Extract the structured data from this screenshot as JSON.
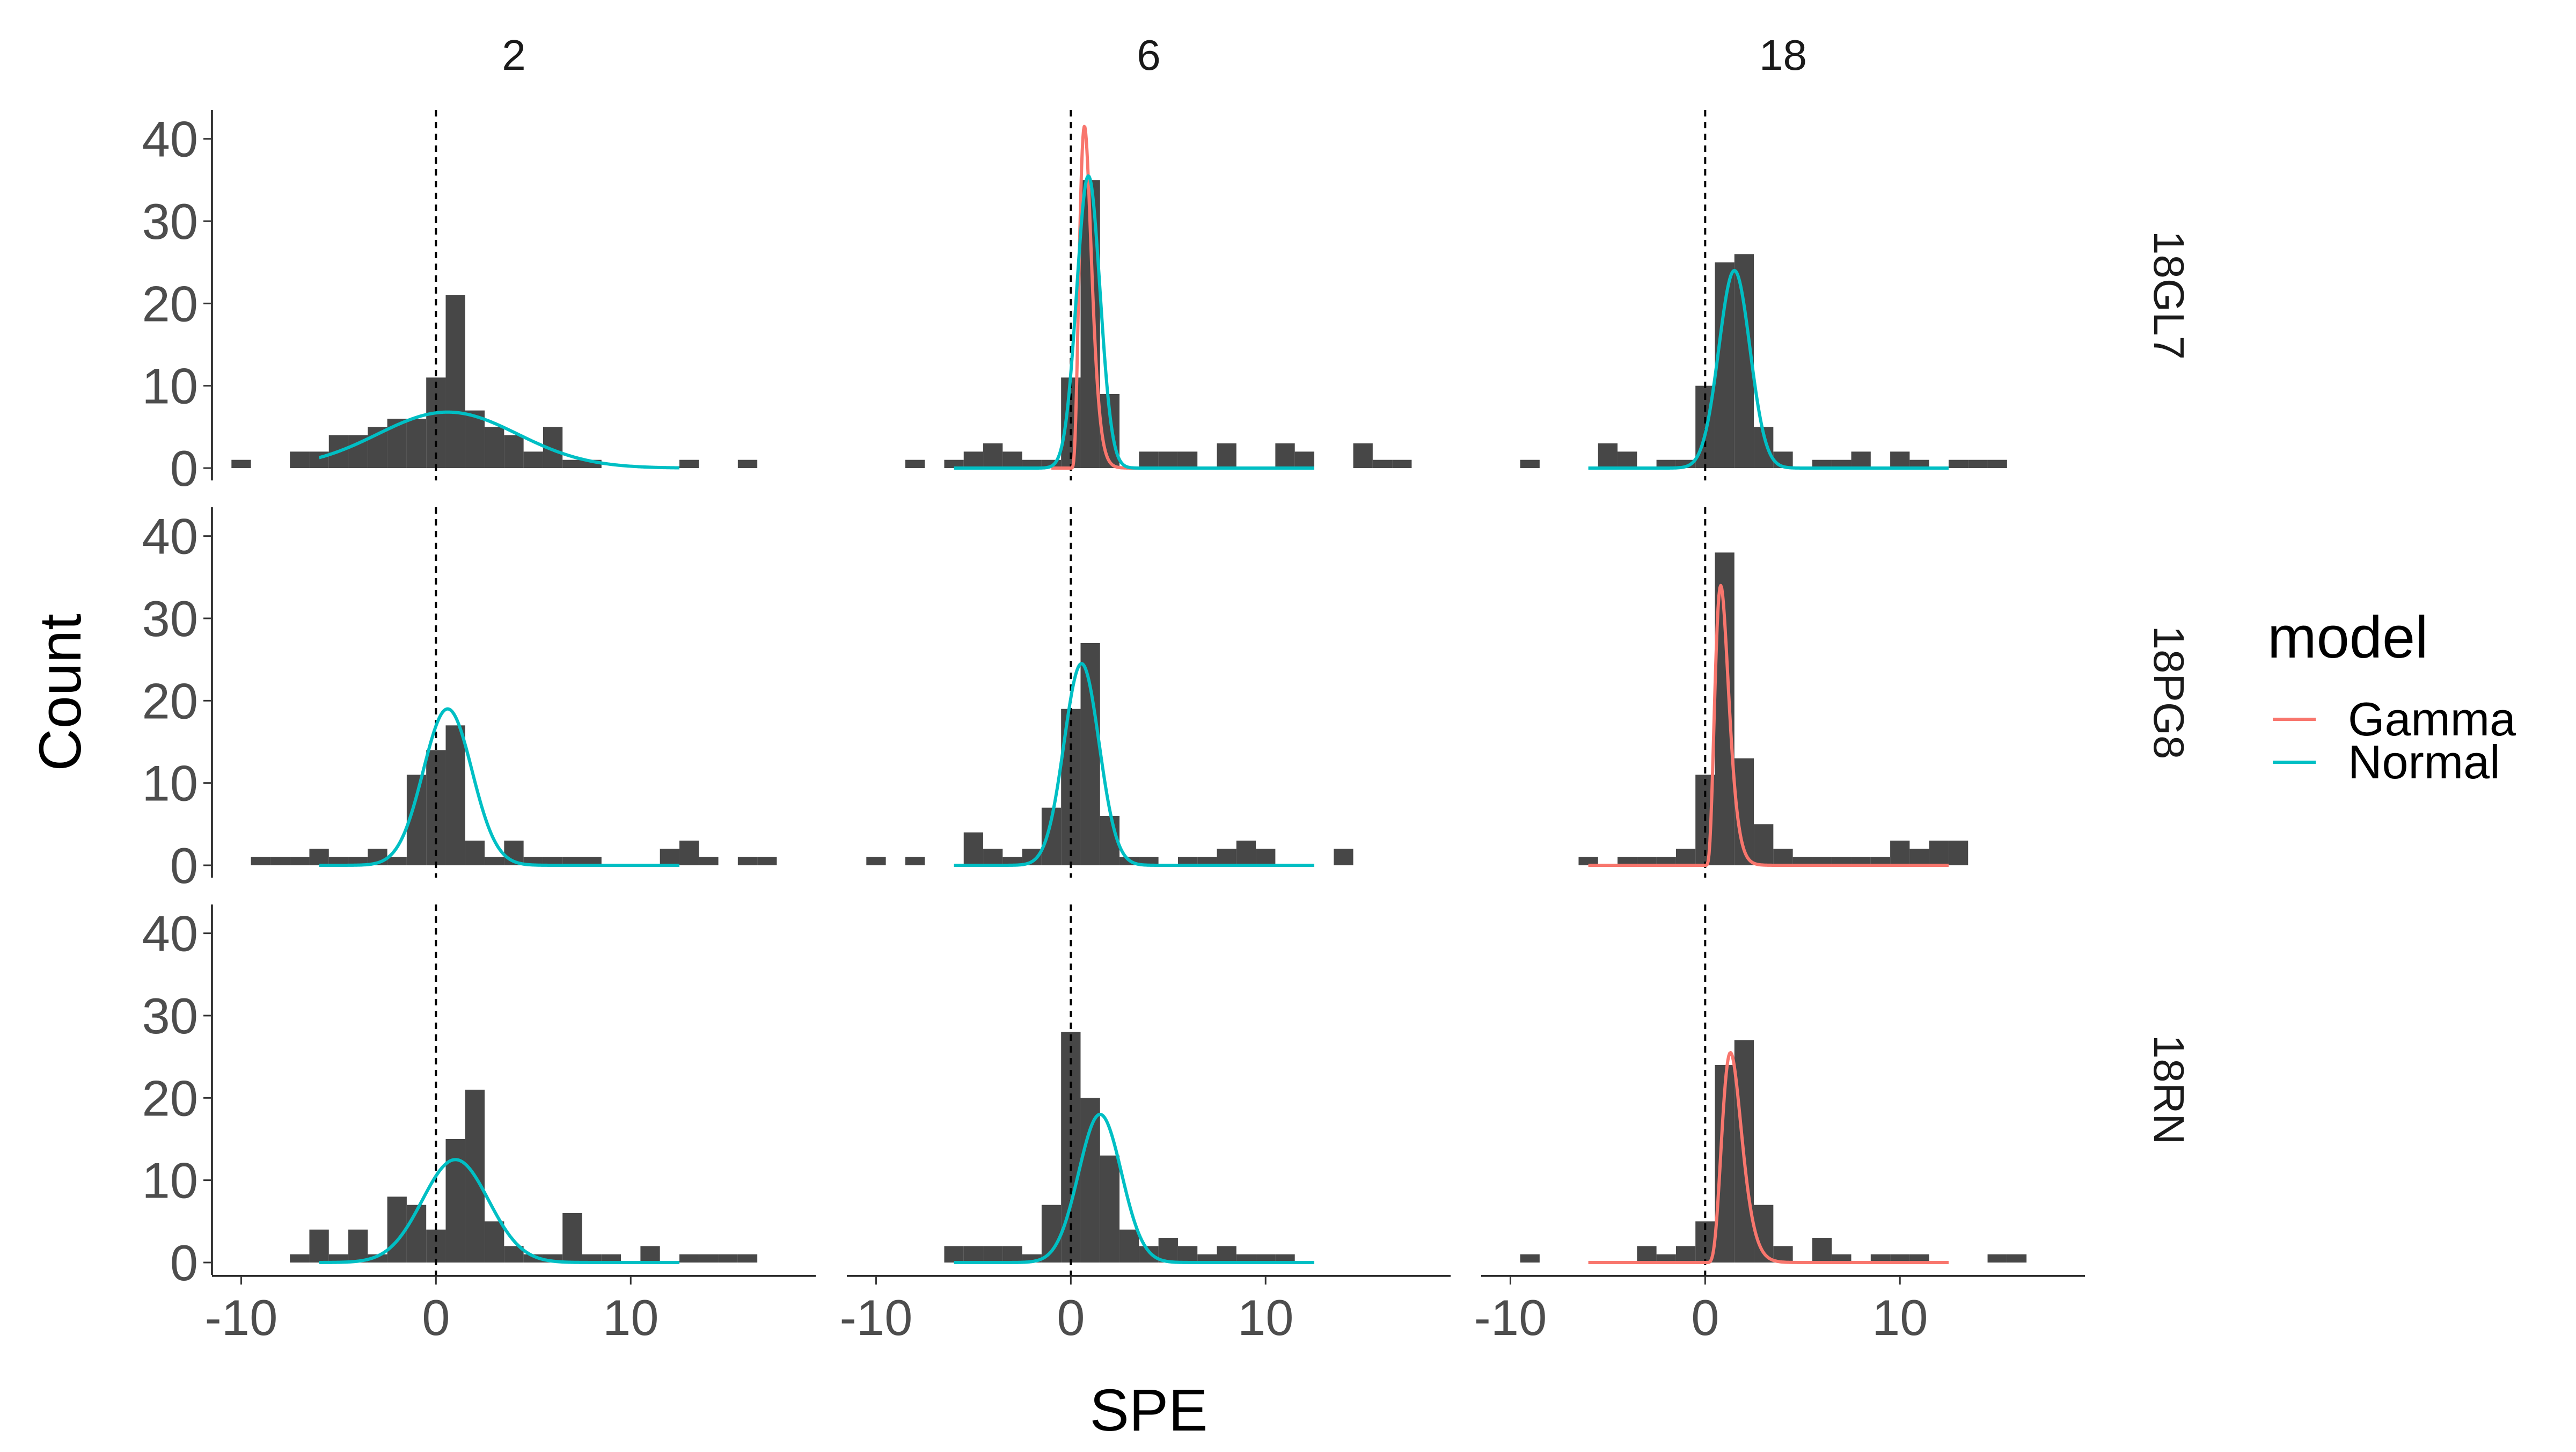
{
  "chart_data": {
    "type": "histogram-facet-grid",
    "xlabel": "SPE",
    "ylabel": "Count",
    "xlim": [
      -11.5,
      19.5
    ],
    "ylim": [
      -1.5,
      43.5
    ],
    "xticks": [
      -10,
      0,
      10
    ],
    "yticks": [
      0,
      10,
      20,
      30,
      40
    ],
    "reference_line_x": 0,
    "bin_width": 1,
    "columns": [
      "2",
      "6",
      "18"
    ],
    "rows": [
      "18GL7",
      "18PG8",
      "18RN"
    ],
    "legend": {
      "title": "model",
      "position": "right",
      "entries": [
        {
          "label": "Gamma",
          "color": "#F8766D"
        },
        {
          "label": "Normal",
          "color": "#00BFC4"
        }
      ]
    },
    "colors": {
      "bar": "#474747",
      "axis": "#000000",
      "text": "#4D4D4D"
    },
    "panels": [
      {
        "row": "18GL7",
        "col": "2",
        "model": "Normal",
        "bins": [
          [
            -10,
            1
          ],
          [
            -7,
            2
          ],
          [
            -6,
            2
          ],
          [
            -5,
            4
          ],
          [
            -4,
            4
          ],
          [
            -3,
            5
          ],
          [
            -2,
            6
          ],
          [
            -1,
            6
          ],
          [
            0,
            11
          ],
          [
            1,
            21
          ],
          [
            2,
            7
          ],
          [
            3,
            5
          ],
          [
            4,
            4
          ],
          [
            5,
            2
          ],
          [
            6,
            5
          ],
          [
            7,
            1
          ],
          [
            8,
            1
          ],
          [
            13,
            1
          ],
          [
            16,
            1
          ]
        ],
        "fit": {
          "mean": 0.6,
          "sd": 3.6,
          "peak": 6.8,
          "range": [
            -6,
            12.5
          ]
        }
      },
      {
        "row": "18GL7",
        "col": "6",
        "model": "Gamma+Normal",
        "bins": [
          [
            -8,
            1
          ],
          [
            -6,
            1
          ],
          [
            -5,
            2
          ],
          [
            -4,
            3
          ],
          [
            -3,
            2
          ],
          [
            -2,
            1
          ],
          [
            -1,
            1
          ],
          [
            0,
            11
          ],
          [
            1,
            35
          ],
          [
            2,
            9
          ],
          [
            4,
            2
          ],
          [
            5,
            2
          ],
          [
            6,
            2
          ],
          [
            8,
            3
          ],
          [
            11,
            3
          ],
          [
            12,
            2
          ],
          [
            15,
            3
          ],
          [
            16,
            1
          ],
          [
            17,
            1
          ]
        ],
        "fit": {
          "mean": 0.9,
          "sd": 0.6,
          "peak": 35.5,
          "range": [
            -6,
            12.5
          ]
        },
        "fit_gamma": {
          "shape": 6,
          "scale": 0.14,
          "peak": 41.5,
          "range": [
            -1,
            12.5
          ]
        }
      },
      {
        "row": "18GL7",
        "col": "18",
        "model": "Normal",
        "bins": [
          [
            -9,
            1
          ],
          [
            -5,
            3
          ],
          [
            -4,
            2
          ],
          [
            -2,
            1
          ],
          [
            -1,
            1
          ],
          [
            0,
            10
          ],
          [
            1,
            25
          ],
          [
            2,
            26
          ],
          [
            3,
            5
          ],
          [
            4,
            2
          ],
          [
            6,
            1
          ],
          [
            7,
            1
          ],
          [
            8,
            2
          ],
          [
            10,
            2
          ],
          [
            11,
            1
          ],
          [
            13,
            1
          ],
          [
            14,
            1
          ],
          [
            15,
            1
          ]
        ],
        "fit": {
          "mean": 1.5,
          "sd": 0.8,
          "peak": 24.0,
          "range": [
            -6,
            12.5
          ]
        }
      },
      {
        "row": "18PG8",
        "col": "2",
        "model": "Normal",
        "bins": [
          [
            -9,
            1
          ],
          [
            -8,
            1
          ],
          [
            -7,
            1
          ],
          [
            -6,
            2
          ],
          [
            -5,
            1
          ],
          [
            -4,
            1
          ],
          [
            -3,
            2
          ],
          [
            -2,
            1
          ],
          [
            -1,
            11
          ],
          [
            0,
            14
          ],
          [
            1,
            17
          ],
          [
            2,
            3
          ],
          [
            3,
            1
          ],
          [
            4,
            3
          ],
          [
            5,
            1
          ],
          [
            6,
            1
          ],
          [
            7,
            1
          ],
          [
            8,
            1
          ],
          [
            12,
            2
          ],
          [
            13,
            3
          ],
          [
            14,
            1
          ],
          [
            16,
            1
          ],
          [
            17,
            1
          ]
        ],
        "fit": {
          "mean": 0.6,
          "sd": 1.25,
          "peak": 19.0,
          "range": [
            -6,
            12.5
          ]
        }
      },
      {
        "row": "18PG8",
        "col": "6",
        "model": "Normal",
        "bins": [
          [
            -10,
            1
          ],
          [
            -8,
            1
          ],
          [
            -5,
            4
          ],
          [
            -4,
            2
          ],
          [
            -3,
            1
          ],
          [
            -2,
            2
          ],
          [
            -1,
            7
          ],
          [
            0,
            19
          ],
          [
            1,
            27
          ],
          [
            2,
            6
          ],
          [
            3,
            1
          ],
          [
            4,
            1
          ],
          [
            6,
            1
          ],
          [
            7,
            1
          ],
          [
            8,
            2
          ],
          [
            9,
            3
          ],
          [
            10,
            2
          ],
          [
            14,
            2
          ]
        ],
        "fit": {
          "mean": 0.55,
          "sd": 0.9,
          "peak": 24.5,
          "range": [
            -6,
            12.5
          ]
        }
      },
      {
        "row": "18PG8",
        "col": "18",
        "model": "Gamma",
        "bins": [
          [
            -6,
            1
          ],
          [
            -4,
            1
          ],
          [
            -3,
            1
          ],
          [
            -2,
            1
          ],
          [
            -1,
            2
          ],
          [
            0,
            11
          ],
          [
            1,
            38
          ],
          [
            2,
            13
          ],
          [
            3,
            5
          ],
          [
            4,
            2
          ],
          [
            5,
            1
          ],
          [
            6,
            1
          ],
          [
            7,
            1
          ],
          [
            8,
            1
          ],
          [
            9,
            1
          ],
          [
            10,
            3
          ],
          [
            11,
            2
          ],
          [
            12,
            3
          ],
          [
            13,
            3
          ]
        ],
        "fit_gamma": {
          "shape": 6,
          "scale": 0.16,
          "peak": 34.0,
          "range": [
            -6,
            12.5
          ]
        }
      },
      {
        "row": "18RN",
        "col": "2",
        "model": "Normal",
        "bins": [
          [
            -7,
            1
          ],
          [
            -6,
            4
          ],
          [
            -5,
            1
          ],
          [
            -4,
            4
          ],
          [
            -3,
            1
          ],
          [
            -2,
            8
          ],
          [
            -1,
            7
          ],
          [
            0,
            4
          ],
          [
            1,
            15
          ],
          [
            2,
            21
          ],
          [
            3,
            5
          ],
          [
            4,
            2
          ],
          [
            5,
            1
          ],
          [
            6,
            1
          ],
          [
            7,
            6
          ],
          [
            8,
            1
          ],
          [
            9,
            1
          ],
          [
            11,
            2
          ],
          [
            13,
            1
          ],
          [
            14,
            1
          ],
          [
            15,
            1
          ],
          [
            16,
            1
          ]
        ],
        "fit": {
          "mean": 1.0,
          "sd": 1.7,
          "peak": 12.5,
          "range": [
            -6,
            12.5
          ]
        }
      },
      {
        "row": "18RN",
        "col": "6",
        "model": "Normal",
        "bins": [
          [
            -6,
            2
          ],
          [
            -5,
            2
          ],
          [
            -4,
            2
          ],
          [
            -3,
            2
          ],
          [
            -2,
            1
          ],
          [
            -1,
            7
          ],
          [
            0,
            28
          ],
          [
            1,
            20
          ],
          [
            2,
            13
          ],
          [
            3,
            4
          ],
          [
            4,
            2
          ],
          [
            5,
            3
          ],
          [
            6,
            2
          ],
          [
            7,
            1
          ],
          [
            8,
            2
          ],
          [
            9,
            1
          ],
          [
            10,
            1
          ],
          [
            11,
            1
          ]
        ],
        "fit": {
          "mean": 1.5,
          "sd": 1.1,
          "peak": 18.0,
          "range": [
            -6,
            12.5
          ]
        }
      },
      {
        "row": "18RN",
        "col": "18",
        "model": "Gamma",
        "bins": [
          [
            -9,
            1
          ],
          [
            -3,
            2
          ],
          [
            -2,
            1
          ],
          [
            -1,
            2
          ],
          [
            0,
            5
          ],
          [
            1,
            24
          ],
          [
            2,
            27
          ],
          [
            3,
            7
          ],
          [
            4,
            2
          ],
          [
            6,
            3
          ],
          [
            7,
            1
          ],
          [
            9,
            1
          ],
          [
            10,
            1
          ],
          [
            11,
            1
          ],
          [
            15,
            1
          ],
          [
            16,
            1
          ]
        ],
        "fit_gamma": {
          "shape": 7.5,
          "scale": 0.2,
          "peak": 25.5,
          "range": [
            -6,
            12.5
          ]
        }
      }
    ]
  }
}
